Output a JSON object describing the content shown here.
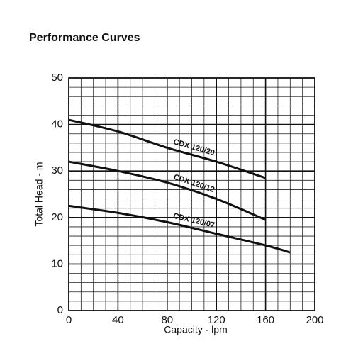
{
  "chart_data": {
    "type": "line",
    "title": "Performance Curves",
    "x_label": "Capacity - lpm",
    "y_label": "Total Head - m",
    "x": [
      0,
      40,
      80,
      120,
      160,
      180
    ],
    "series": [
      {
        "name": "CDX 120/20",
        "color": "#111111",
        "values": [
          41,
          38.5,
          35,
          32,
          28.5,
          null
        ]
      },
      {
        "name": "CDX 120/12",
        "color": "#111111",
        "values": [
          32,
          30,
          27.5,
          24,
          19.5,
          null
        ]
      },
      {
        "name": "CDX 120/07",
        "color": "#111111",
        "values": [
          22.5,
          21,
          19,
          16.5,
          14,
          12.5
        ]
      }
    ],
    "xlim": [
      0,
      200
    ],
    "xticks": [
      0,
      40,
      80,
      120,
      160,
      200
    ],
    "ylim": [
      0,
      50
    ],
    "yticks": [
      0,
      10,
      20,
      30,
      40,
      50
    ],
    "grid": true,
    "minor_grid": true
  }
}
